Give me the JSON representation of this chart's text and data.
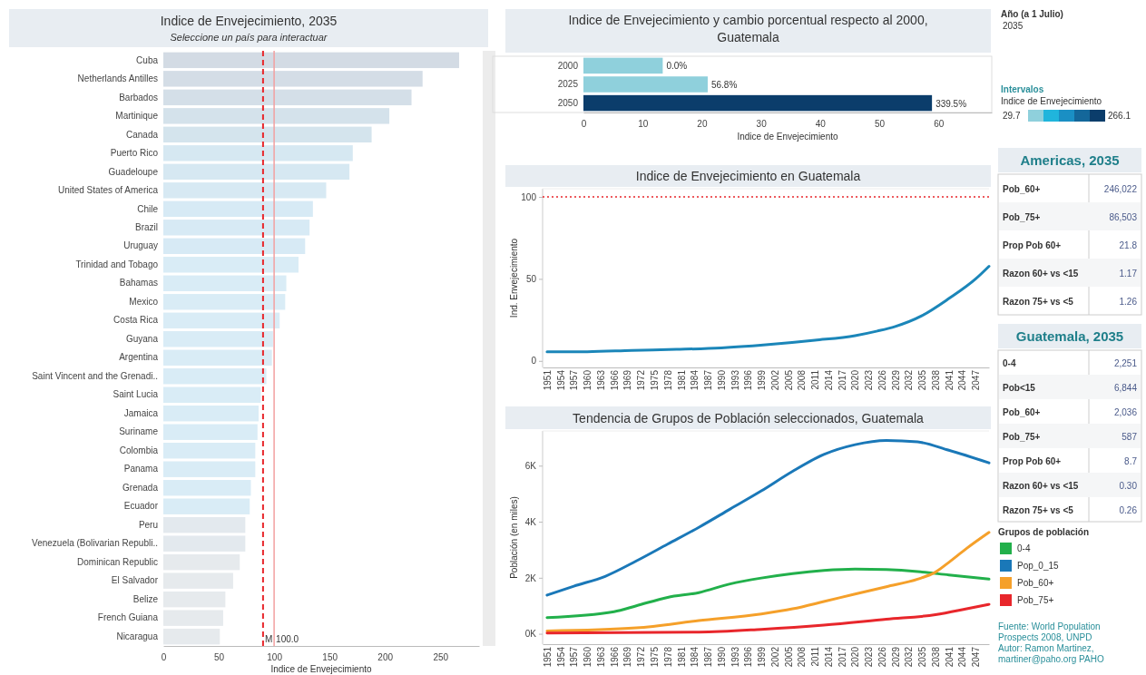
{
  "chart_data": [
    {
      "type": "bar",
      "orientation": "horizontal",
      "title": "Indice de Envejecimiento, 2035",
      "subtitle": "Seleccione un país para interactuar",
      "xlabel": "Indice de Envejecimiento",
      "categories": [
        "Cuba",
        "Netherlands Antilles",
        "Barbados",
        "Martinique",
        "Canada",
        "Puerto Rico",
        "Guadeloupe",
        "United States of America",
        "Chile",
        "Brazil",
        "Uruguay",
        "Trinidad and Tobago",
        "Bahamas",
        "Mexico",
        "Costa Rica",
        "Guyana",
        "Argentina",
        "Saint Vincent and the Grenadi..",
        "Saint Lucia",
        "Jamaica",
        "Suriname",
        "Colombia",
        "Panama",
        "Grenada",
        "Ecuador",
        "Peru",
        "Venezuela (Bolivarian Republi..",
        "Dominican Republic",
        "El Salvador",
        "Belize",
        "French Guiana",
        "Nicaragua"
      ],
      "values": [
        267,
        234,
        224,
        204,
        188,
        171,
        168,
        147,
        135,
        132,
        128,
        122,
        111,
        110,
        105,
        99,
        98,
        93,
        88,
        86,
        85,
        83,
        83,
        79,
        78,
        74,
        74,
        69,
        63,
        56,
        54,
        51
      ],
      "colors": [
        "#d3dbe4",
        "#d4dde6",
        "#d4dfe8",
        "#d4e2eb",
        "#d4e4ed",
        "#d6e8f2",
        "#d6e8f2",
        "#d7e9f3",
        "#d7eaf5",
        "#d7eaf5",
        "#d7eaf5",
        "#d9ecf6",
        "#d9ecf6",
        "#d9ecf6",
        "#d9ecf6",
        "#d9ecf6",
        "#d9ecf6",
        "#d9ecf6",
        "#d9ecf6",
        "#d9ecf6",
        "#d9ecf6",
        "#d9ecf6",
        "#d9ecf6",
        "#d9ecf6",
        "#d9ecf6",
        "#e3e9ee",
        "#e3e9ee",
        "#e6eaed",
        "#e6eaed",
        "#e6eaed",
        "#e6eaed",
        "#e6eaed"
      ],
      "xlim": [
        0,
        285
      ],
      "xticks": [
        0,
        50,
        100,
        150,
        200,
        250
      ],
      "ref_lines": [
        {
          "axis": "x",
          "value": 90,
          "label": "M",
          "color": "#e8262b",
          "line_style": "dashed"
        },
        {
          "axis": "x",
          "value": 100,
          "label": "100.0",
          "color": "#f2a0a0",
          "line_style": "solid"
        }
      ]
    },
    {
      "type": "bar",
      "orientation": "horizontal",
      "title": "Indice de Envejecimiento y cambio porcentual respecto al 2000, Guatemala",
      "xlabel": "Indice de Envejecimiento",
      "categories": [
        "2000",
        "2025",
        "2050"
      ],
      "values": [
        13.4,
        21,
        58.9
      ],
      "colors": [
        "#8fd0dc",
        "#8fd0dc",
        "#0b3d6b"
      ],
      "annotations": [
        {
          "text": "0.0%",
          "x": 13.4,
          "y": "2000"
        },
        {
          "text": "56.8%",
          "x": 21,
          "y": "2025"
        },
        {
          "text": "339.5%",
          "x": 58.9,
          "y": "2050"
        }
      ],
      "xlim": [
        0,
        69
      ],
      "xticks": [
        0,
        10,
        20,
        30,
        40,
        50,
        60
      ]
    },
    {
      "type": "line",
      "title": "Indice de Envejecimiento en Guatemala",
      "ylabel": "Ind. Envejecimiento",
      "x": [
        1951,
        1960,
        1970,
        1980,
        1990,
        2000,
        2011,
        2020,
        2025,
        2029,
        2035,
        2041,
        2047,
        2050
      ],
      "series": [
        {
          "color": "#1b86b9",
          "values": [
            5.6,
            5.6,
            6.4,
            7.0,
            7.9,
            9.8,
            12.6,
            15.4,
            18.2,
            21,
            27.6,
            38,
            50,
            57.7
          ]
        }
      ],
      "xlim": [
        1950,
        2050
      ],
      "xticks": [
        1951,
        1954,
        1957,
        1960,
        1963,
        1966,
        1969,
        1972,
        1975,
        1978,
        1981,
        1984,
        1987,
        1990,
        1993,
        1996,
        1999,
        2002,
        2005,
        2008,
        2011,
        2014,
        2017,
        2020,
        2023,
        2026,
        2029,
        2032,
        2035,
        2038,
        2041,
        2044,
        2047
      ],
      "ylim": [
        -4,
        105
      ],
      "yticks": [
        0,
        50,
        100
      ],
      "ref_lines": [
        {
          "axis": "y",
          "value": 100,
          "color": "#e8262b",
          "line_style": "dotted"
        }
      ]
    },
    {
      "type": "line",
      "title": "Tendencia de Grupos de Población seleccionados, Guatemala",
      "ylabel": "Población (en miles)",
      "legend": "right",
      "legend_title": "Grupos de población",
      "series": [
        {
          "name": "0-4",
          "color": "#22b04b",
          "x": [
            1951,
            1966,
            1971,
            1978,
            1985,
            1992,
            1999,
            2006,
            2013,
            2020,
            2027,
            2034,
            2041,
            2050
          ],
          "values": [
            580,
            790,
            1000,
            1300,
            1470,
            1780,
            1990,
            2150,
            2260,
            2310,
            2290,
            2220,
            2100,
            1950
          ]
        },
        {
          "name": "Pop_0_15",
          "color": "#1a78b8",
          "x": [
            1951,
            1957,
            1964,
            1971,
            1978,
            1985,
            1992,
            1999,
            2006,
            2013,
            2020,
            2027,
            2034,
            2041,
            2050
          ],
          "values": [
            1380,
            1700,
            2050,
            2600,
            3200,
            3800,
            4450,
            5100,
            5800,
            6400,
            6750,
            6900,
            6850,
            6550,
            6100
          ]
        },
        {
          "name": "Pob_60+",
          "color": "#f5a02a",
          "x": [
            1951,
            1971,
            1985,
            1999,
            2006,
            2013,
            2020,
            2027,
            2034,
            2038,
            2041,
            2045,
            2050
          ],
          "values": [
            100,
            210,
            470,
            710,
            890,
            1150,
            1420,
            1680,
            1950,
            2200,
            2550,
            3050,
            3620
          ]
        },
        {
          "name": "Pob_75+",
          "color": "#e8262b",
          "x": [
            1951,
            1985,
            1999,
            2013,
            2027,
            2038,
            2045,
            2050
          ],
          "values": [
            30,
            60,
            160,
            310,
            520,
            680,
            890,
            1050
          ]
        }
      ],
      "xlim": [
        1950,
        2050
      ],
      "xticks": [
        1951,
        1954,
        1957,
        1960,
        1963,
        1966,
        1969,
        1972,
        1975,
        1978,
        1981,
        1984,
        1987,
        1990,
        1993,
        1996,
        1999,
        2002,
        2005,
        2008,
        2011,
        2014,
        2017,
        2020,
        2023,
        2026,
        2029,
        2032,
        2035,
        2038,
        2041,
        2044,
        2047
      ],
      "ylim": [
        -370,
        7240
      ],
      "yticks": [
        {
          "value": 0,
          "label": "0K"
        },
        {
          "value": 2000,
          "label": "2K"
        },
        {
          "value": 4000,
          "label": "4K"
        },
        {
          "value": 6000,
          "label": "6K"
        }
      ],
      "annotations": [
        "Fuente: World Population Prospects 2008, UNPD",
        "Autor: Ramon Martinez, martiner@paho.org PAHO"
      ]
    },
    {
      "type": "other",
      "title": "Año (a 1 Julio)",
      "annotations": [
        "2035"
      ]
    },
    {
      "type": "other",
      "title": "Intervalos",
      "subtitle": "Indice de Envejecimiento",
      "colors": [
        "#8fd0dc",
        "#20b5dc",
        "#1a8fc4",
        "#14679a",
        "#0b3d6b"
      ],
      "annotations": [
        "29.7",
        "266.1"
      ]
    },
    {
      "type": "other",
      "title": "Americas, 2035",
      "categories": [
        "Pob_60+",
        "Pob_75+",
        "Prop Pob 60+",
        "Razon 60+ vs <15",
        "Razon 75+ vs <5"
      ],
      "values": [
        246022,
        86503,
        21.8,
        1.17,
        1.26
      ],
      "value_labels": [
        "246,022",
        "86,503",
        "21.8",
        "1.17",
        "1.26"
      ]
    },
    {
      "type": "other",
      "title": "Guatemala, 2035",
      "categories": [
        "0-4",
        "Pob<15",
        "Pob_60+",
        "Pob_75+",
        "Prop Pob 60+",
        "Razon 60+ vs <15",
        "Razon 75+ vs <5"
      ],
      "values": [
        2251,
        6844,
        2036,
        587,
        8.7,
        0.3,
        0.26
      ],
      "value_labels": [
        "2,251",
        "6,844",
        "2,036",
        "587",
        "8.7",
        "0.30",
        "0.26"
      ]
    }
  ]
}
